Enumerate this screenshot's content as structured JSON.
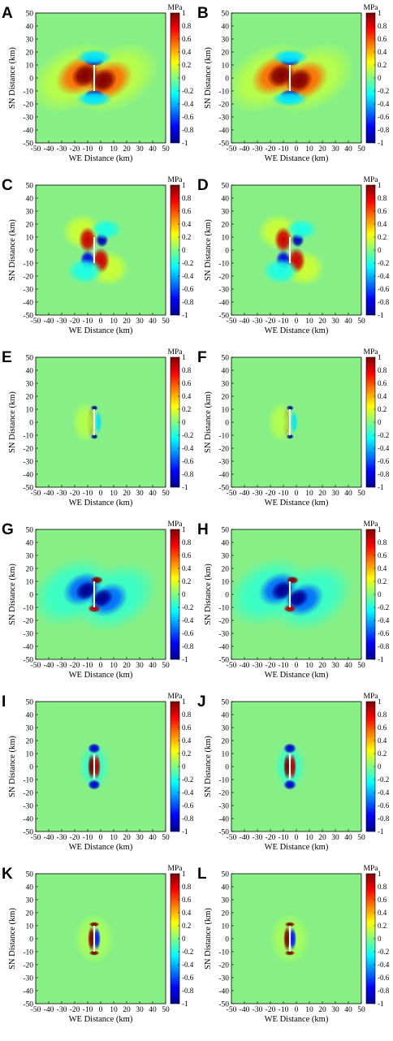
{
  "figure": {
    "colormap": [
      "#00008f",
      "#0000ff",
      "#0080ff",
      "#00ffff",
      "#80ff80",
      "#ffff00",
      "#ff8000",
      "#ff0000",
      "#800000"
    ],
    "background_color": "#86f086",
    "fault_color": "#ffffff"
  },
  "chart_data": [
    {
      "type": "heatmap",
      "panel": "A",
      "pattern": "lobes",
      "xlabel": "WE Distance (km)",
      "ylabel": "SN Distance (km)",
      "xlim": [
        -50,
        50
      ],
      "ylim": [
        -50,
        50
      ],
      "xticks": [
        -50,
        -40,
        -30,
        -20,
        -10,
        0,
        10,
        20,
        30,
        40,
        50
      ],
      "yticks": [
        50,
        40,
        30,
        20,
        10,
        0,
        -10,
        -20,
        -30,
        -40,
        -50
      ],
      "colorbar": {
        "unit": "MPa",
        "range": [
          -1,
          1
        ],
        "ticks": [
          "1",
          "0.8",
          "0.6",
          "0.4",
          "0.2",
          "0",
          "-0.2",
          "-0.4",
          "-0.6",
          "-0.8",
          "-1"
        ]
      },
      "fault": {
        "x": -5,
        "y": [
          -10,
          10
        ]
      },
      "grid": false
    },
    {
      "type": "heatmap",
      "panel": "B",
      "pattern": "lobes",
      "xlabel": "WE Distance (km)",
      "ylabel": "SN Distance (km)",
      "xlim": [
        -50,
        50
      ],
      "ylim": [
        -50,
        50
      ],
      "xticks": [
        -50,
        -40,
        -30,
        -20,
        -10,
        0,
        10,
        20,
        30,
        40,
        50
      ],
      "yticks": [
        50,
        40,
        30,
        20,
        10,
        0,
        -10,
        -20,
        -30,
        -40,
        -50
      ],
      "colorbar": {
        "unit": "MPa",
        "range": [
          -1,
          1
        ],
        "ticks": [
          "1",
          "0.8",
          "0.6",
          "0.4",
          "0.2",
          "0",
          "-0.2",
          "-0.4",
          "-0.6",
          "-0.8",
          "-1"
        ]
      },
      "fault": {
        "x": -5,
        "y": [
          -10,
          10
        ]
      },
      "grid": false
    },
    {
      "type": "heatmap",
      "panel": "C",
      "pattern": "quad",
      "xlabel": "WE Distance (km)",
      "ylabel": "SN Distance (km)",
      "xlim": [
        -50,
        50
      ],
      "ylim": [
        -50,
        50
      ],
      "xticks": [
        -50,
        -40,
        -30,
        -20,
        -10,
        0,
        10,
        20,
        30,
        40,
        50
      ],
      "yticks": [
        50,
        40,
        30,
        20,
        10,
        0,
        -10,
        -20,
        -30,
        -40,
        -50
      ],
      "colorbar": {
        "unit": "MPa",
        "range": [
          -1,
          1
        ],
        "ticks": [
          "1",
          "0.8",
          "0.6",
          "0.4",
          "0.2",
          "0",
          "-0.2",
          "-0.4",
          "-0.6",
          "-0.8",
          "-1"
        ]
      },
      "fault": {
        "x": -5,
        "y": [
          -10,
          10
        ]
      },
      "grid": false
    },
    {
      "type": "heatmap",
      "panel": "D",
      "pattern": "quad",
      "xlabel": "WE Distance (km)",
      "ylabel": "SN Distance (km)",
      "xlim": [
        -50,
        50
      ],
      "ylim": [
        -50,
        50
      ],
      "xticks": [
        -50,
        -40,
        -30,
        -20,
        -10,
        0,
        10,
        20,
        30,
        40,
        50
      ],
      "yticks": [
        50,
        40,
        30,
        20,
        10,
        0,
        -10,
        -20,
        -30,
        -40,
        -50
      ],
      "colorbar": {
        "unit": "MPa",
        "range": [
          -1,
          1
        ],
        "ticks": [
          "1",
          "0.8",
          "0.6",
          "0.4",
          "0.2",
          "0",
          "-0.2",
          "-0.4",
          "-0.6",
          "-0.8",
          "-1"
        ]
      },
      "fault": {
        "x": -5,
        "y": [
          -10,
          10
        ]
      },
      "grid": false
    },
    {
      "type": "heatmap",
      "panel": "E",
      "pattern": "bracket",
      "xlabel": "WE Distance (km)",
      "ylabel": "SN Distance (km)",
      "xlim": [
        -50,
        50
      ],
      "ylim": [
        -50,
        50
      ],
      "xticks": [
        -50,
        -40,
        -30,
        -20,
        -10,
        0,
        10,
        20,
        30,
        40,
        50
      ],
      "yticks": [
        50,
        40,
        30,
        20,
        10,
        0,
        -10,
        -20,
        -30,
        -40,
        -50
      ],
      "colorbar": {
        "unit": "MPa",
        "range": [
          -1,
          1
        ],
        "ticks": [
          "1",
          "0.8",
          "0.6",
          "0.4",
          "0.2",
          "0",
          "-0.2",
          "-0.4",
          "-0.6",
          "-0.8",
          "-1"
        ]
      },
      "fault": {
        "x": -5,
        "y": [
          -10,
          10
        ]
      },
      "grid": false
    },
    {
      "type": "heatmap",
      "panel": "F",
      "pattern": "bracket",
      "xlabel": "WE Distance (km)",
      "ylabel": "SN Distance (km)",
      "xlim": [
        -50,
        50
      ],
      "ylim": [
        -50,
        50
      ],
      "xticks": [
        -50,
        -40,
        -30,
        -20,
        -10,
        0,
        10,
        20,
        30,
        40,
        50
      ],
      "yticks": [
        50,
        40,
        30,
        20,
        10,
        0,
        -10,
        -20,
        -30,
        -40,
        -50
      ],
      "colorbar": {
        "unit": "MPa",
        "range": [
          -1,
          1
        ],
        "ticks": [
          "1",
          "0.8",
          "0.6",
          "0.4",
          "0.2",
          "0",
          "-0.2",
          "-0.4",
          "-0.6",
          "-0.8",
          "-1"
        ]
      },
      "fault": {
        "x": -5,
        "y": [
          -10,
          10
        ]
      },
      "grid": false
    },
    {
      "type": "heatmap",
      "panel": "G",
      "pattern": "neglobes",
      "xlabel": "WE Distance (km)",
      "ylabel": "SN Distance (km)",
      "xlim": [
        -50,
        50
      ],
      "ylim": [
        -50,
        50
      ],
      "xticks": [
        -50,
        -40,
        -30,
        -20,
        -10,
        0,
        10,
        20,
        30,
        40,
        50
      ],
      "yticks": [
        50,
        40,
        30,
        20,
        10,
        0,
        -10,
        -20,
        -30,
        -40,
        -50
      ],
      "colorbar": {
        "unit": "MPa",
        "range": [
          -1,
          1
        ],
        "ticks": [
          "1",
          "0.8",
          "0.6",
          "0.4",
          "0.2",
          "0",
          "-0.2",
          "-0.4",
          "-0.6",
          "-0.8",
          "-1"
        ]
      },
      "fault": {
        "x": -5,
        "y": [
          -10,
          10
        ]
      },
      "grid": false
    },
    {
      "type": "heatmap",
      "panel": "H",
      "pattern": "neglobes",
      "xlabel": "WE Distance (km)",
      "ylabel": "SN Distance (km)",
      "xlim": [
        -50,
        50
      ],
      "ylim": [
        -50,
        50
      ],
      "xticks": [
        -50,
        -40,
        -30,
        -20,
        -10,
        0,
        10,
        20,
        30,
        40,
        50
      ],
      "yticks": [
        50,
        40,
        30,
        20,
        10,
        0,
        -10,
        -20,
        -30,
        -40,
        -50
      ],
      "colorbar": {
        "unit": "MPa",
        "range": [
          -1,
          1
        ],
        "ticks": [
          "1",
          "0.8",
          "0.6",
          "0.4",
          "0.2",
          "0",
          "-0.2",
          "-0.4",
          "-0.6",
          "-0.8",
          "-1"
        ]
      },
      "fault": {
        "x": -5,
        "y": [
          -10,
          10
        ]
      },
      "grid": false
    },
    {
      "type": "heatmap",
      "panel": "I",
      "pattern": "narrow",
      "xlabel": "WE Distance (km)",
      "ylabel": "SN Distance (km)",
      "xlim": [
        -50,
        50
      ],
      "ylim": [
        -50,
        50
      ],
      "xticks": [
        -50,
        -40,
        -30,
        -20,
        -10,
        0,
        10,
        20,
        30,
        40,
        50
      ],
      "yticks": [
        50,
        40,
        30,
        20,
        10,
        0,
        -10,
        -20,
        -30,
        -40,
        -50
      ],
      "colorbar": {
        "unit": "MPa",
        "range": [
          -1,
          1
        ],
        "ticks": [
          "1",
          "0.8",
          "0.6",
          "0.4",
          "0.2",
          "0",
          "-0.2",
          "-0.4",
          "-0.6",
          "-0.8",
          "-1"
        ]
      },
      "fault": {
        "x": -5,
        "y": [
          -10,
          10
        ]
      },
      "grid": false
    },
    {
      "type": "heatmap",
      "panel": "J",
      "pattern": "narrow",
      "xlabel": "WE Distance (km)",
      "ylabel": "SN Distance (km)",
      "xlim": [
        -50,
        50
      ],
      "ylim": [
        -50,
        50
      ],
      "xticks": [
        -50,
        -40,
        -30,
        -20,
        -10,
        0,
        10,
        20,
        30,
        40,
        50
      ],
      "yticks": [
        50,
        40,
        30,
        20,
        10,
        0,
        -10,
        -20,
        -30,
        -40,
        -50
      ],
      "colorbar": {
        "unit": "MPa",
        "range": [
          -1,
          1
        ],
        "ticks": [
          "1",
          "0.8",
          "0.6",
          "0.4",
          "0.2",
          "0",
          "-0.2",
          "-0.4",
          "-0.6",
          "-0.8",
          "-1"
        ]
      },
      "fault": {
        "x": -5,
        "y": [
          -10,
          10
        ]
      },
      "grid": false
    },
    {
      "type": "heatmap",
      "panel": "K",
      "pattern": "narrowpos",
      "xlabel": "WE Distance (km)",
      "ylabel": "SN Distance (km)",
      "xlim": [
        -50,
        50
      ],
      "ylim": [
        -50,
        50
      ],
      "xticks": [
        -50,
        -40,
        -30,
        -20,
        -10,
        0,
        10,
        20,
        30,
        40,
        50
      ],
      "yticks": [
        50,
        40,
        30,
        20,
        10,
        0,
        -10,
        -20,
        -30,
        -40,
        -50
      ],
      "colorbar": {
        "unit": "MPa",
        "range": [
          -1,
          1
        ],
        "ticks": [
          "1",
          "0.8",
          "0.6",
          "0.4",
          "0.2",
          "0",
          "-0.2",
          "-0.4",
          "-0.6",
          "-0.8",
          "-1"
        ]
      },
      "fault": {
        "x": -5,
        "y": [
          -10,
          10
        ]
      },
      "grid": false
    },
    {
      "type": "heatmap",
      "panel": "L",
      "pattern": "narrowpos",
      "xlabel": "WE Distance (km)",
      "ylabel": "SN Distance (km)",
      "xlim": [
        -50,
        50
      ],
      "ylim": [
        -50,
        50
      ],
      "xticks": [
        -50,
        -40,
        -30,
        -20,
        -10,
        0,
        10,
        20,
        30,
        40,
        50
      ],
      "yticks": [
        50,
        40,
        30,
        20,
        10,
        0,
        -10,
        -20,
        -30,
        -40,
        -50
      ],
      "colorbar": {
        "unit": "MPa",
        "range": [
          -1,
          1
        ],
        "ticks": [
          "1",
          "0.8",
          "0.6",
          "0.4",
          "0.2",
          "0",
          "-0.2",
          "-0.4",
          "-0.6",
          "-0.8",
          "-1"
        ]
      },
      "fault": {
        "x": -5,
        "y": [
          -10,
          10
        ]
      },
      "grid": false
    }
  ]
}
